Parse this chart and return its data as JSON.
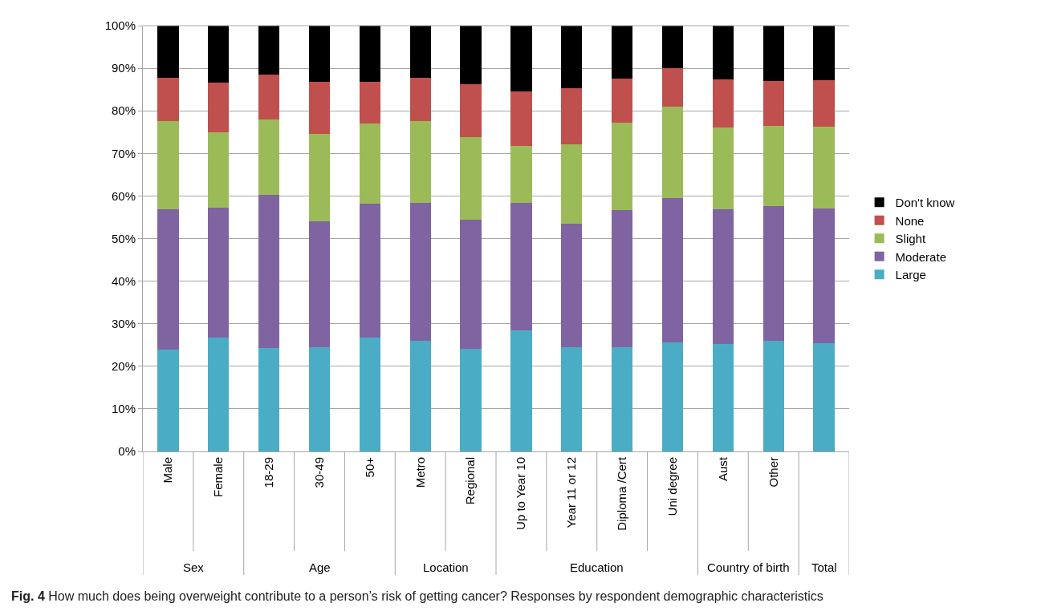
{
  "chart_data": {
    "type": "bar",
    "stacked": true,
    "categories": [
      "Male",
      "Female",
      "18-29",
      "30-49",
      "50+",
      "Metro",
      "Regional",
      "Up to Year 10",
      "Year 11 or 12",
      "Diploma /Cert",
      "Uni degree",
      "Aust",
      "Other",
      null
    ],
    "series": [
      {
        "name": "Large",
        "color": "#4bacc6",
        "values": [
          24,
          26.8,
          24.3,
          24.4,
          26.7,
          26,
          24.2,
          28.5,
          24.4,
          24.4,
          25.7,
          25.2,
          25.9,
          25.4
        ]
      },
      {
        "name": "Moderate",
        "color": "#8064a2",
        "values": [
          32.8,
          30.5,
          36,
          29.6,
          31.4,
          32.4,
          30.3,
          29.9,
          29.1,
          32.2,
          33.9,
          31.7,
          31.7,
          31.7
        ]
      },
      {
        "name": "Slight",
        "color": "#9bbb59",
        "values": [
          20.8,
          17.7,
          17.7,
          20.5,
          18.9,
          19.2,
          19.3,
          13.4,
          18.7,
          20.6,
          21.4,
          19.2,
          18.9,
          19.1
        ]
      },
      {
        "name": "None",
        "color": "#c0504d",
        "values": [
          10.2,
          11.7,
          10.6,
          12.4,
          9.9,
          10.2,
          12.5,
          12.7,
          13.2,
          10.4,
          9,
          11.3,
          10.5,
          11
        ]
      },
      {
        "name": "Don't know",
        "color": "#000000",
        "values": [
          12.2,
          13.3,
          11.4,
          13.1,
          13.1,
          12.2,
          13.7,
          15.5,
          14.6,
          12.4,
          10,
          12.6,
          13,
          12.8
        ]
      }
    ],
    "ylim": [
      0,
      100
    ],
    "yticks": [
      {
        "value": 0,
        "label": "0%"
      },
      {
        "value": 10,
        "label": "10%"
      },
      {
        "value": 20,
        "label": "20%"
      },
      {
        "value": 30,
        "label": "30%"
      },
      {
        "value": 40,
        "label": "40%"
      },
      {
        "value": 50,
        "label": "50%"
      },
      {
        "value": 60,
        "label": "60%"
      },
      {
        "value": 70,
        "label": "70%"
      },
      {
        "value": 80,
        "label": "80%"
      },
      {
        "value": 90,
        "label": "90%"
      },
      {
        "value": 100,
        "label": "100%"
      }
    ],
    "grid": "y",
    "legend": "right",
    "annotations": [
      "Sex",
      "Age",
      "Location",
      "Education",
      "Country of birth",
      "Total",
      "Fig. 4 How much does being overweight contribute to a person’s risk of getting cancer? Responses by respondent demographic characteristics"
    ]
  }
}
